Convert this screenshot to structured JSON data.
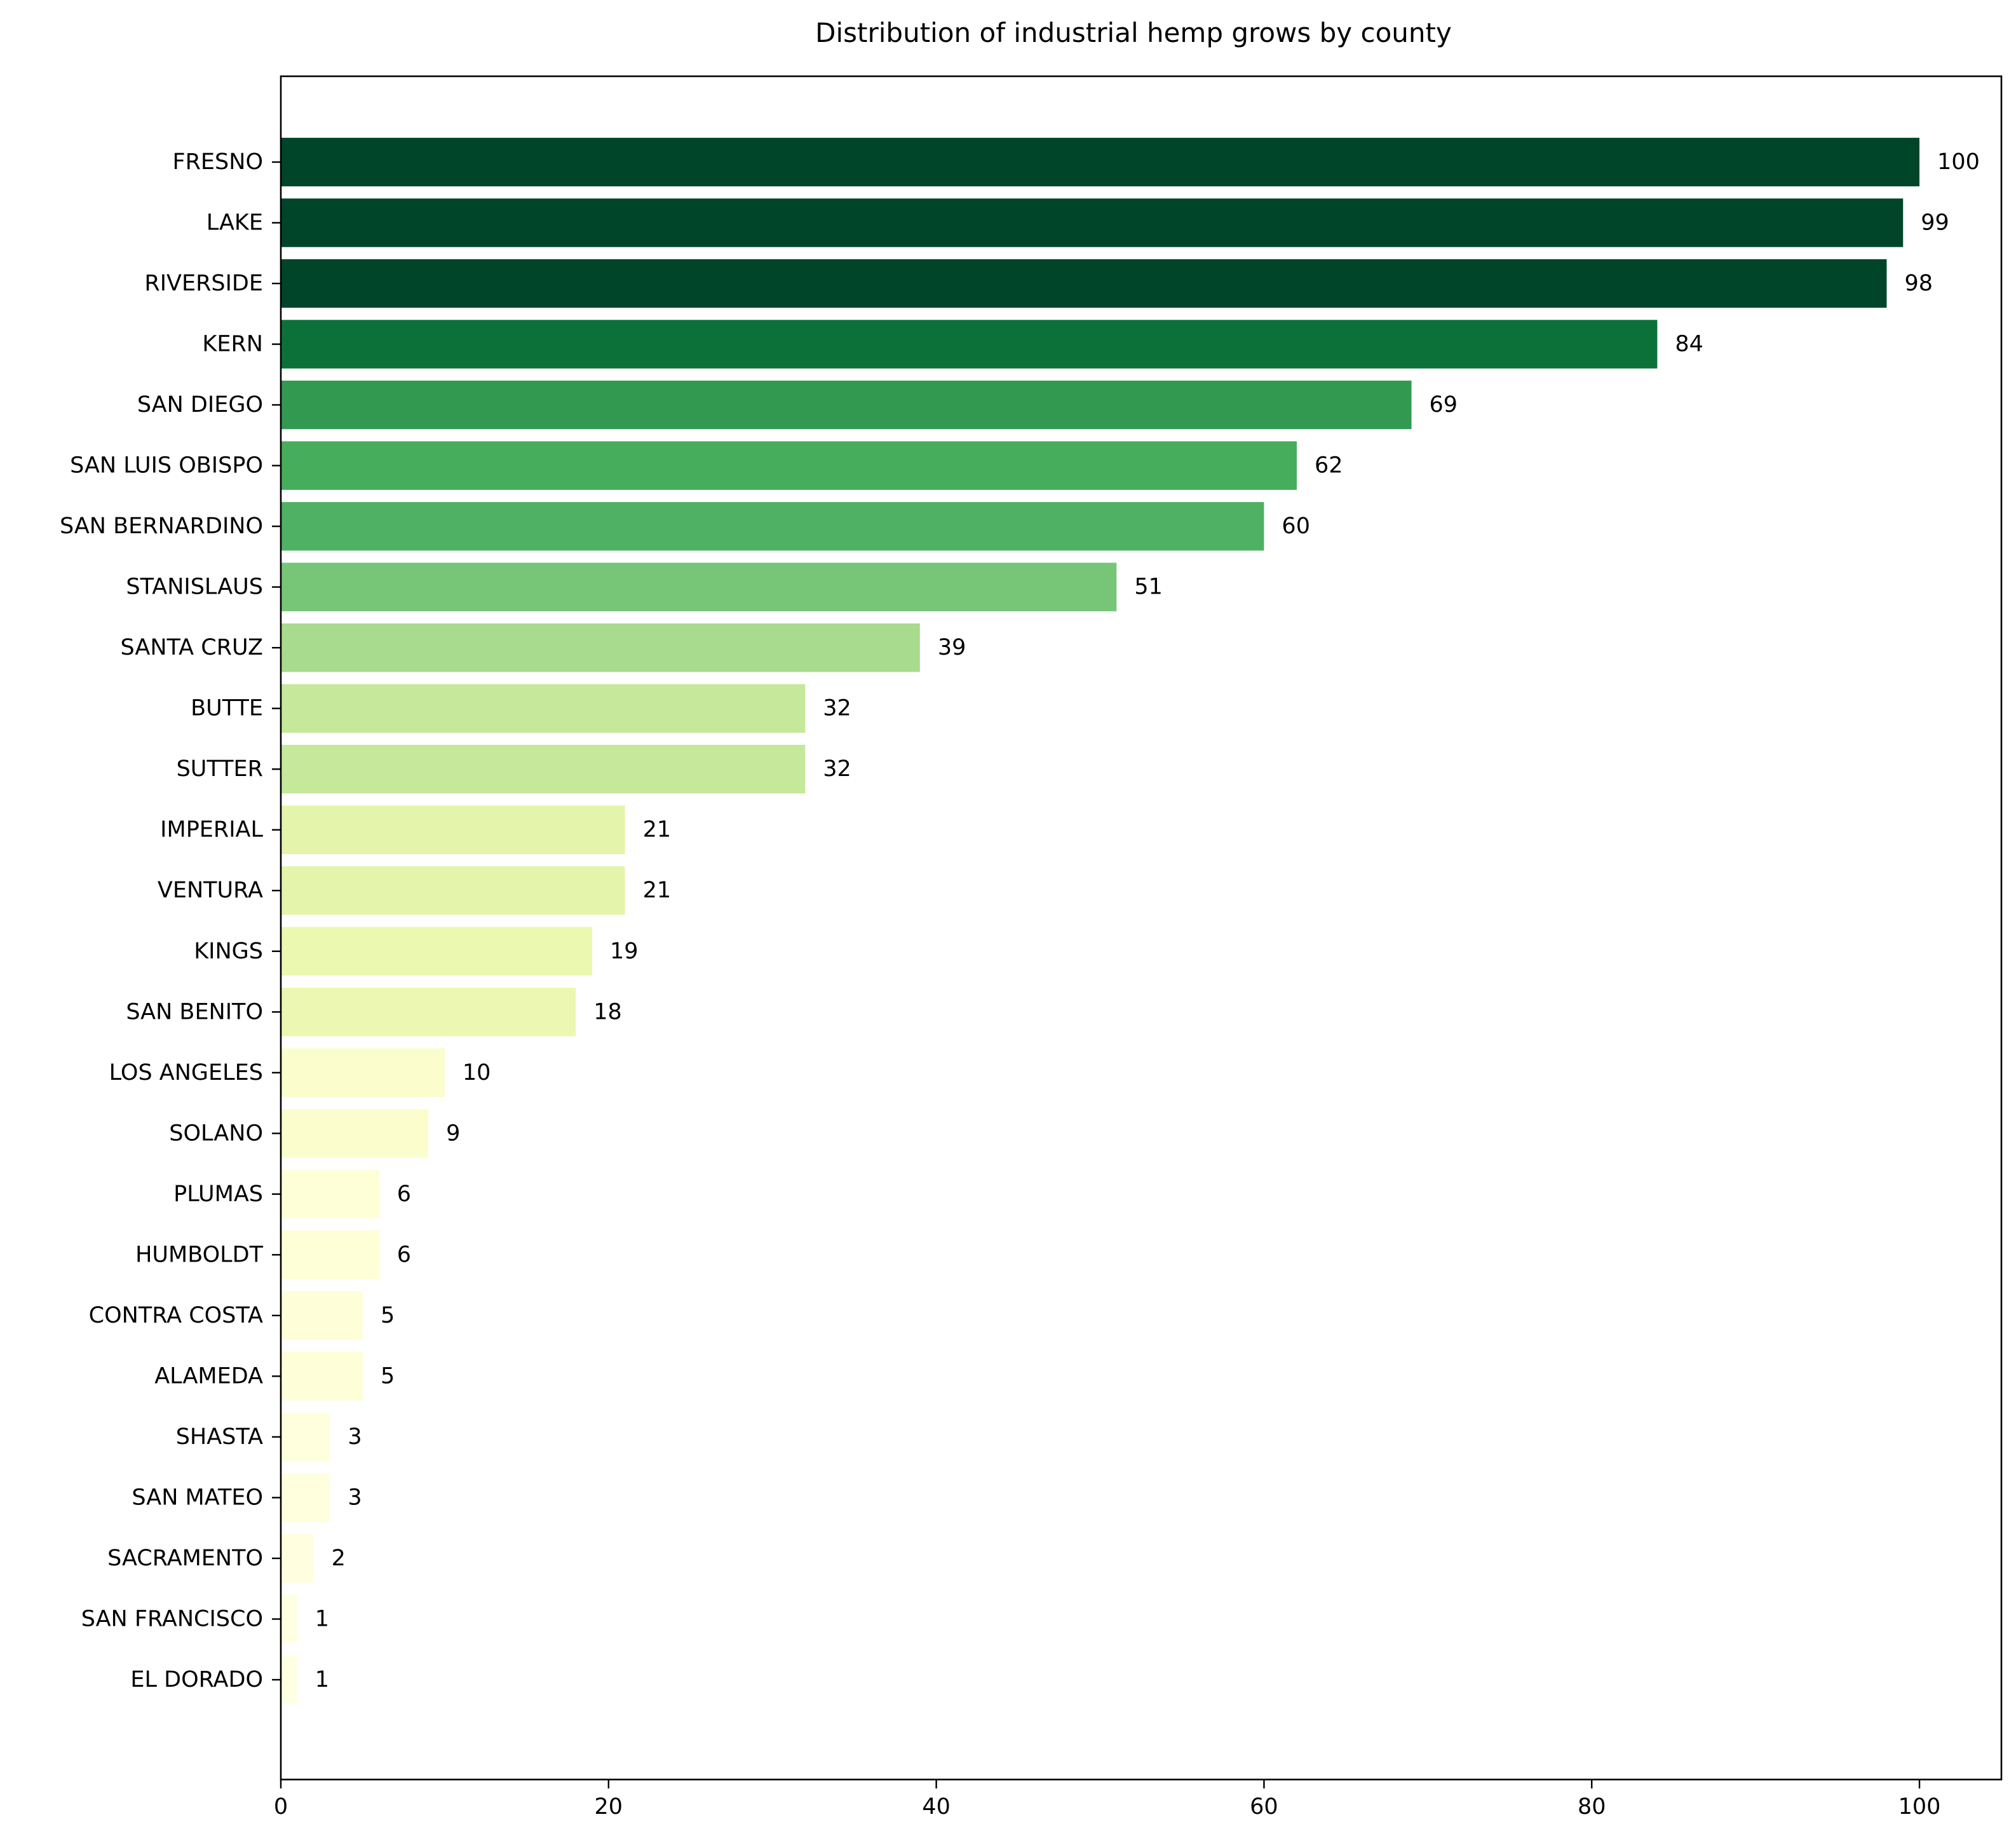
{
  "chart_data": {
    "type": "bar",
    "orientation": "horizontal",
    "title": "Distribution of industrial hemp grows by county",
    "xlabel": "",
    "ylabel": "",
    "xlim": [
      0,
      105
    ],
    "x_ticks": [
      0,
      20,
      40,
      60,
      80,
      100
    ],
    "grid": false,
    "legend": "none",
    "categories": [
      "FRESNO",
      "LAKE",
      "RIVERSIDE",
      "KERN",
      "SAN DIEGO",
      "SAN LUIS OBISPO",
      "SAN BERNARDINO",
      "STANISLAUS",
      "SANTA CRUZ",
      "BUTTE",
      "SUTTER",
      "IMPERIAL",
      "VENTURA",
      "KINGS",
      "SAN BENITO",
      "LOS ANGELES",
      "SOLANO",
      "PLUMAS",
      "HUMBOLDT",
      "CONTRA COSTA",
      "ALAMEDA",
      "SHASTA",
      "SAN MATEO",
      "SACRAMENTO",
      "SAN FRANCISCO",
      "EL DORADO"
    ],
    "values": [
      100,
      99,
      98,
      84,
      69,
      62,
      60,
      51,
      39,
      32,
      32,
      21,
      21,
      19,
      18,
      10,
      9,
      6,
      6,
      5,
      5,
      3,
      3,
      2,
      1,
      1
    ],
    "colors": [
      "#00452a",
      "#00452a",
      "#00452a",
      "#0b7139",
      "#329a50",
      "#46ad5c",
      "#4fb163",
      "#77c678",
      "#a9db8e",
      "#c5e89a",
      "#c5e89a",
      "#e4f5ab",
      "#e4f5ab",
      "#eaf8b0",
      "#ecf8b2",
      "#fbfdcc",
      "#fbfdcc",
      "#fefed7",
      "#fefed7",
      "#fefed9",
      "#fefed9",
      "#ffffde",
      "#ffffde",
      "#ffffe0",
      "#ffffe3",
      "#ffffe3"
    ]
  }
}
